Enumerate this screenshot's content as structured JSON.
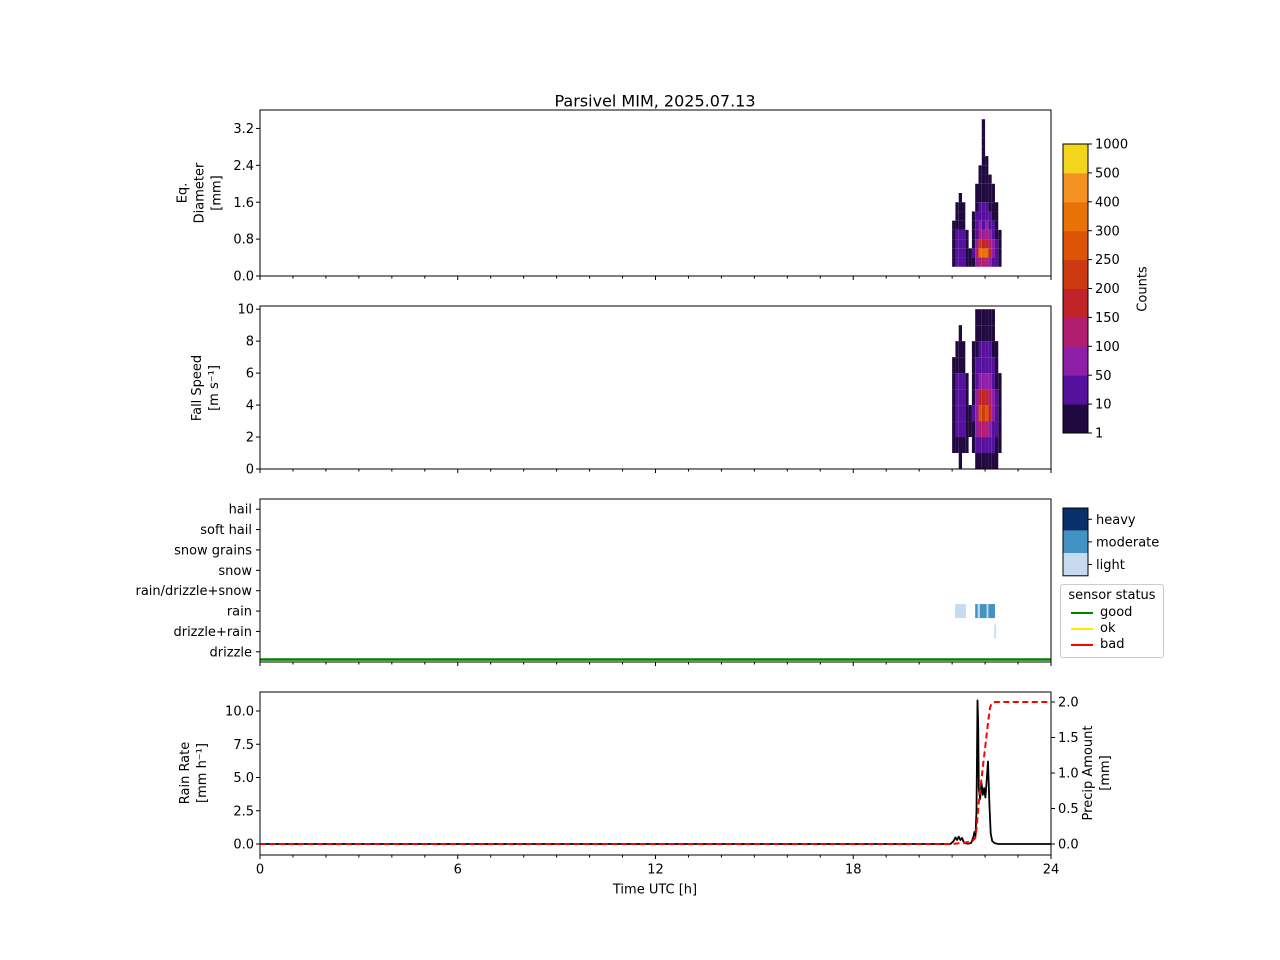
{
  "figure_title": "Parsivel MIM, 2025.07.13",
  "chart_data": [
    {
      "id": "eq_diameter_panel",
      "type": "heatmap",
      "ylabel": "Eq.\nDiameter\n[mm]",
      "ylim": [
        0,
        3.6
      ],
      "yticks": [
        0,
        0.8,
        1.6,
        2.4,
        3.2
      ],
      "ytick_labels": [
        "0.0",
        "0.8",
        "1.6",
        "2.4",
        "3.2"
      ],
      "xlim": [
        0,
        24
      ],
      "bin": {
        "t0": 21.0,
        "dt": 0.1,
        "y0": 0,
        "dy": 0.2
      },
      "columns": [
        [
          0,
          3,
          8,
          6,
          3,
          1
        ],
        [
          0,
          14,
          28,
          22,
          12,
          6,
          3,
          1
        ],
        [
          0,
          22,
          42,
          33,
          18,
          9,
          4,
          2,
          1
        ],
        [
          0,
          18,
          33,
          26,
          14,
          7,
          3,
          1
        ],
        [
          0,
          2,
          4,
          3,
          1
        ],
        [
          0,
          1,
          1
        ],
        [
          0,
          7,
          13,
          9,
          5,
          2,
          1
        ],
        [
          0,
          55,
          110,
          85,
          45,
          22,
          11,
          5,
          2,
          1
        ],
        [
          0,
          140,
          310,
          210,
          115,
          55,
          28,
          13,
          6,
          3,
          1,
          1
        ],
        [
          0,
          115,
          340,
          175,
          95,
          48,
          24,
          11,
          5,
          2,
          1,
          1,
          1,
          1,
          1,
          1,
          1
        ],
        [
          0,
          135,
          320,
          195,
          105,
          52,
          26,
          12,
          6,
          3,
          1,
          1,
          1
        ],
        [
          0,
          95,
          190,
          140,
          75,
          38,
          18,
          9,
          4,
          2,
          1
        ],
        [
          0,
          45,
          95,
          70,
          38,
          18,
          9,
          4,
          2,
          1
        ],
        [
          0,
          14,
          28,
          19,
          9,
          4,
          2,
          1
        ],
        [
          0,
          2,
          4,
          3,
          1
        ]
      ]
    },
    {
      "id": "fall_speed_panel",
      "type": "heatmap",
      "ylabel": "Fall Speed\n[m s⁻¹]",
      "ylim": [
        0,
        10.2
      ],
      "yticks": [
        0,
        2,
        4,
        6,
        8,
        10
      ],
      "ytick_labels": [
        "0",
        "2",
        "4",
        "6",
        "8",
        "10"
      ],
      "xlim": [
        0,
        24
      ],
      "bin": {
        "t0": 21.0,
        "dt": 0.1,
        "y0": 0,
        "dy": 1.0
      },
      "columns": [
        [
          0,
          2,
          6,
          8,
          5,
          2,
          1
        ],
        [
          0,
          6,
          16,
          26,
          20,
          10,
          4,
          1
        ],
        [
          1,
          9,
          26,
          40,
          30,
          15,
          6,
          2,
          1
        ],
        [
          0,
          7,
          19,
          30,
          22,
          11,
          4,
          1
        ],
        [
          0,
          1,
          3,
          4,
          2,
          1
        ],
        [
          0,
          0,
          1,
          1
        ],
        [
          0,
          3,
          9,
          13,
          9,
          4,
          2,
          1
        ],
        [
          2,
          16,
          52,
          90,
          70,
          35,
          15,
          6,
          2,
          1
        ],
        [
          4,
          32,
          125,
          260,
          185,
          92,
          42,
          16,
          6,
          2
        ],
        [
          3,
          27,
          105,
          230,
          165,
          82,
          36,
          13,
          5,
          2
        ],
        [
          4,
          30,
          115,
          250,
          175,
          88,
          39,
          14,
          6,
          2
        ],
        [
          2,
          21,
          82,
          165,
          122,
          62,
          26,
          10,
          4,
          1
        ],
        [
          1,
          12,
          42,
          82,
          62,
          31,
          12,
          5,
          2,
          1
        ],
        [
          1,
          4,
          13,
          26,
          19,
          9,
          4,
          1
        ],
        [
          0,
          1,
          3,
          5,
          3,
          1
        ]
      ]
    },
    {
      "id": "precip_type_panel",
      "type": "categorical-timeline",
      "categories": [
        "hail",
        "soft hail",
        "snow grains",
        "snow",
        "rain/drizzle+snow",
        "rain",
        "drizzle+rain",
        "drizzle"
      ],
      "xlim": [
        0,
        24
      ],
      "segments": [
        {
          "category": "rain",
          "start": 21.09,
          "end": 21.42,
          "level": "light"
        },
        {
          "category": "rain",
          "start": 21.7,
          "end": 21.78,
          "level": "moderate"
        },
        {
          "category": "rain",
          "start": 21.78,
          "end": 21.84,
          "level": "light"
        },
        {
          "category": "rain",
          "start": 21.84,
          "end": 22.05,
          "level": "moderate"
        },
        {
          "category": "rain",
          "start": 22.05,
          "end": 22.1,
          "level": "light"
        },
        {
          "category": "rain",
          "start": 22.1,
          "end": 22.3,
          "level": "moderate"
        },
        {
          "category": "drizzle+rain",
          "start": 22.28,
          "end": 22.33,
          "level": "light"
        }
      ],
      "status_line": {
        "status": "good",
        "color": "#008000"
      }
    },
    {
      "id": "rain_rate_panel",
      "type": "line",
      "xlabel": "Time UTC [h]",
      "xlim": [
        0,
        24
      ],
      "xticks": [
        0,
        6,
        12,
        18,
        24
      ],
      "xtick_labels": [
        "0",
        "6",
        "12",
        "18",
        "24"
      ],
      "left_axis": {
        "label": "Rain Rate\n[mm h⁻¹]",
        "ticks": [
          0,
          2.5,
          5,
          7.5,
          10
        ],
        "tick_labels": [
          "0.0",
          "2.5",
          "5.0",
          "7.5",
          "10.0"
        ]
      },
      "right_axis": {
        "label": "Precip Amount\n[mm]",
        "ticks": [
          0,
          0.5,
          1,
          1.5,
          2
        ],
        "tick_labels": [
          "0.0",
          "0.5",
          "1.0",
          "1.5",
          "2.0"
        ]
      },
      "series": [
        {
          "name": "rain_rate",
          "color": "#000000",
          "style": "solid",
          "axis": "left",
          "points": [
            [
              0,
              0
            ],
            [
              20.95,
              0
            ],
            [
              21.05,
              0.25
            ],
            [
              21.1,
              0.5
            ],
            [
              21.15,
              0.3
            ],
            [
              21.2,
              0.55
            ],
            [
              21.25,
              0.3
            ],
            [
              21.3,
              0.45
            ],
            [
              21.35,
              0.15
            ],
            [
              21.4,
              0.05
            ],
            [
              21.5,
              0.02
            ],
            [
              21.58,
              0.08
            ],
            [
              21.64,
              0.5
            ],
            [
              21.68,
              0.9
            ],
            [
              21.71,
              0.6
            ],
            [
              21.74,
              2.5
            ],
            [
              21.77,
              10.8
            ],
            [
              21.79,
              9.0
            ],
            [
              21.81,
              4.2
            ],
            [
              21.85,
              3.4
            ],
            [
              21.89,
              4.6
            ],
            [
              21.93,
              3.7
            ],
            [
              21.97,
              4.2
            ],
            [
              22.01,
              3.5
            ],
            [
              22.05,
              4.8
            ],
            [
              22.09,
              6.2
            ],
            [
              22.13,
              3.0
            ],
            [
              22.17,
              0.8
            ],
            [
              22.22,
              0.2
            ],
            [
              22.3,
              0.05
            ],
            [
              22.4,
              0
            ],
            [
              24,
              0
            ]
          ]
        },
        {
          "name": "precip_amount",
          "color": "#ff0000",
          "style": "dashed",
          "axis": "right",
          "points": [
            [
              0,
              0
            ],
            [
              21.0,
              0
            ],
            [
              21.2,
              0.01
            ],
            [
              21.4,
              0.02
            ],
            [
              21.6,
              0.04
            ],
            [
              21.7,
              0.08
            ],
            [
              21.75,
              0.25
            ],
            [
              21.8,
              0.55
            ],
            [
              21.85,
              0.75
            ],
            [
              21.9,
              0.95
            ],
            [
              21.95,
              1.15
            ],
            [
              22.0,
              1.35
            ],
            [
              22.05,
              1.55
            ],
            [
              22.1,
              1.75
            ],
            [
              22.15,
              1.92
            ],
            [
              22.2,
              1.98
            ],
            [
              22.3,
              2.0
            ],
            [
              24,
              2.0
            ]
          ]
        }
      ]
    }
  ],
  "colorbar": {
    "label": "Counts",
    "boundaries": [
      1,
      10,
      50,
      100,
      150,
      200,
      250,
      300,
      400,
      500,
      1000
    ],
    "tick_labels": [
      "1",
      "10",
      "50",
      "100",
      "150",
      "200",
      "250",
      "300",
      "400",
      "500",
      "1000"
    ],
    "colors": [
      "#20093e",
      "#55119e",
      "#8e1fa8",
      "#b01d71",
      "#c02428",
      "#cd3a12",
      "#dc5405",
      "#e97106",
      "#f59121",
      "#f3d51c"
    ]
  },
  "precip_levels": {
    "entries": [
      {
        "label": "heavy",
        "color": "#08306b"
      },
      {
        "label": "moderate",
        "color": "#4292c6"
      },
      {
        "label": "light",
        "color": "#c6dbef"
      }
    ]
  },
  "sensor_legend": {
    "title": "sensor status",
    "entries": [
      {
        "label": "good",
        "color": "#008000"
      },
      {
        "label": "ok",
        "color": "#ffe800"
      },
      {
        "label": "bad",
        "color": "#ff0000"
      }
    ]
  }
}
